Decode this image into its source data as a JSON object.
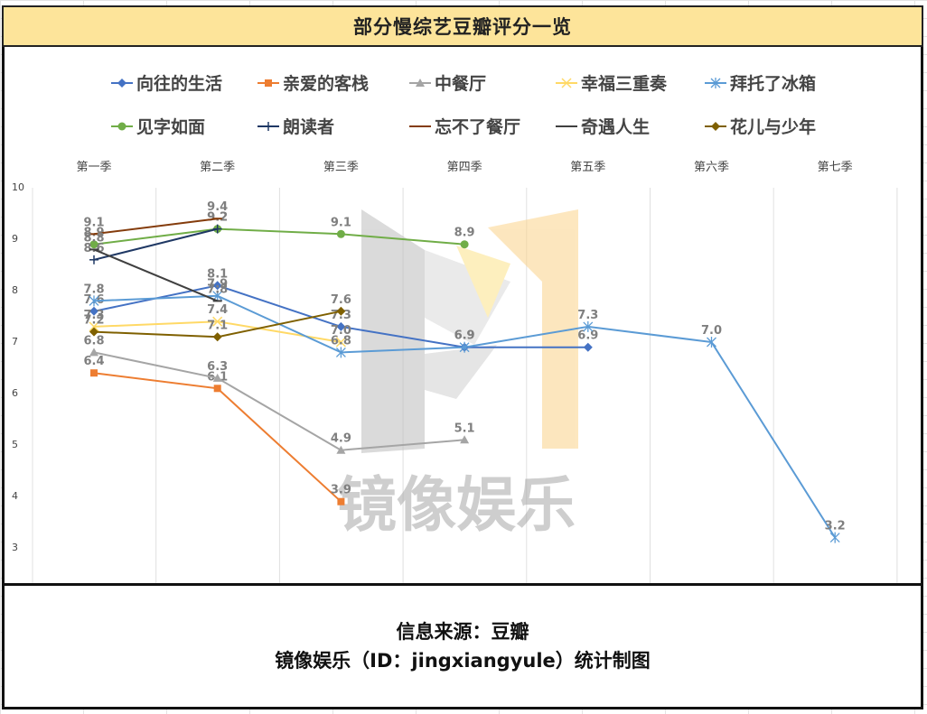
{
  "title": "部分慢综艺豆瓣评分一览",
  "footer": {
    "line1": "信息来源：豆瓣",
    "line2": "镜像娱乐（ID：jingxiangyule）统计制图"
  },
  "watermark": "镜像娱乐",
  "chart_data": {
    "type": "line",
    "title": "部分慢综艺豆瓣评分一览",
    "xlabel": "",
    "ylabel": "",
    "ylim": [
      3,
      10
    ],
    "yticks": [
      3,
      4,
      5,
      6,
      7,
      8,
      9,
      10
    ],
    "grid": true,
    "legend_position": "top",
    "categories": [
      "第一季",
      "第二季",
      "第三季",
      "第四季",
      "第五季",
      "第六季",
      "第七季"
    ],
    "series": [
      {
        "name": "向往的生活",
        "color": "#4472c4",
        "marker": "diamond",
        "values": [
          7.6,
          8.1,
          7.3,
          6.9,
          6.9,
          null,
          null
        ]
      },
      {
        "name": "亲爱的客栈",
        "color": "#ed7d31",
        "marker": "square",
        "values": [
          6.4,
          6.1,
          3.9,
          null,
          null,
          null,
          null
        ]
      },
      {
        "name": "中餐厅",
        "color": "#a5a5a5",
        "marker": "triangle",
        "values": [
          6.8,
          6.3,
          4.9,
          5.1,
          null,
          null,
          null
        ]
      },
      {
        "name": "幸福三重奏",
        "color": "#ffd966",
        "marker": "x",
        "values": [
          7.3,
          7.4,
          7.0,
          null,
          null,
          null,
          null
        ]
      },
      {
        "name": "拜托了冰箱",
        "color": "#5b9bd5",
        "marker": "star",
        "values": [
          7.8,
          7.9,
          6.8,
          6.9,
          7.3,
          7.0,
          3.2
        ]
      },
      {
        "name": "见字如面",
        "color": "#70ad47",
        "marker": "circle",
        "values": [
          8.9,
          9.2,
          9.1,
          8.9,
          null,
          null,
          null
        ]
      },
      {
        "name": "朗读者",
        "color": "#1f3864",
        "marker": "plus",
        "values": [
          8.6,
          9.2,
          null,
          null,
          null,
          null,
          null
        ]
      },
      {
        "name": "忘不了餐厅",
        "color": "#843c0c",
        "marker": "dash",
        "values": [
          9.1,
          9.4,
          null,
          null,
          null,
          null,
          null
        ]
      },
      {
        "name": "奇遇人生",
        "color": "#404040",
        "marker": "dash",
        "values": [
          8.8,
          7.8,
          null,
          null,
          null,
          null,
          null
        ]
      },
      {
        "name": "花儿与少年",
        "color": "#7f6000",
        "marker": "diamond",
        "values": [
          7.2,
          7.1,
          7.6,
          null,
          null,
          null,
          null
        ]
      }
    ]
  }
}
